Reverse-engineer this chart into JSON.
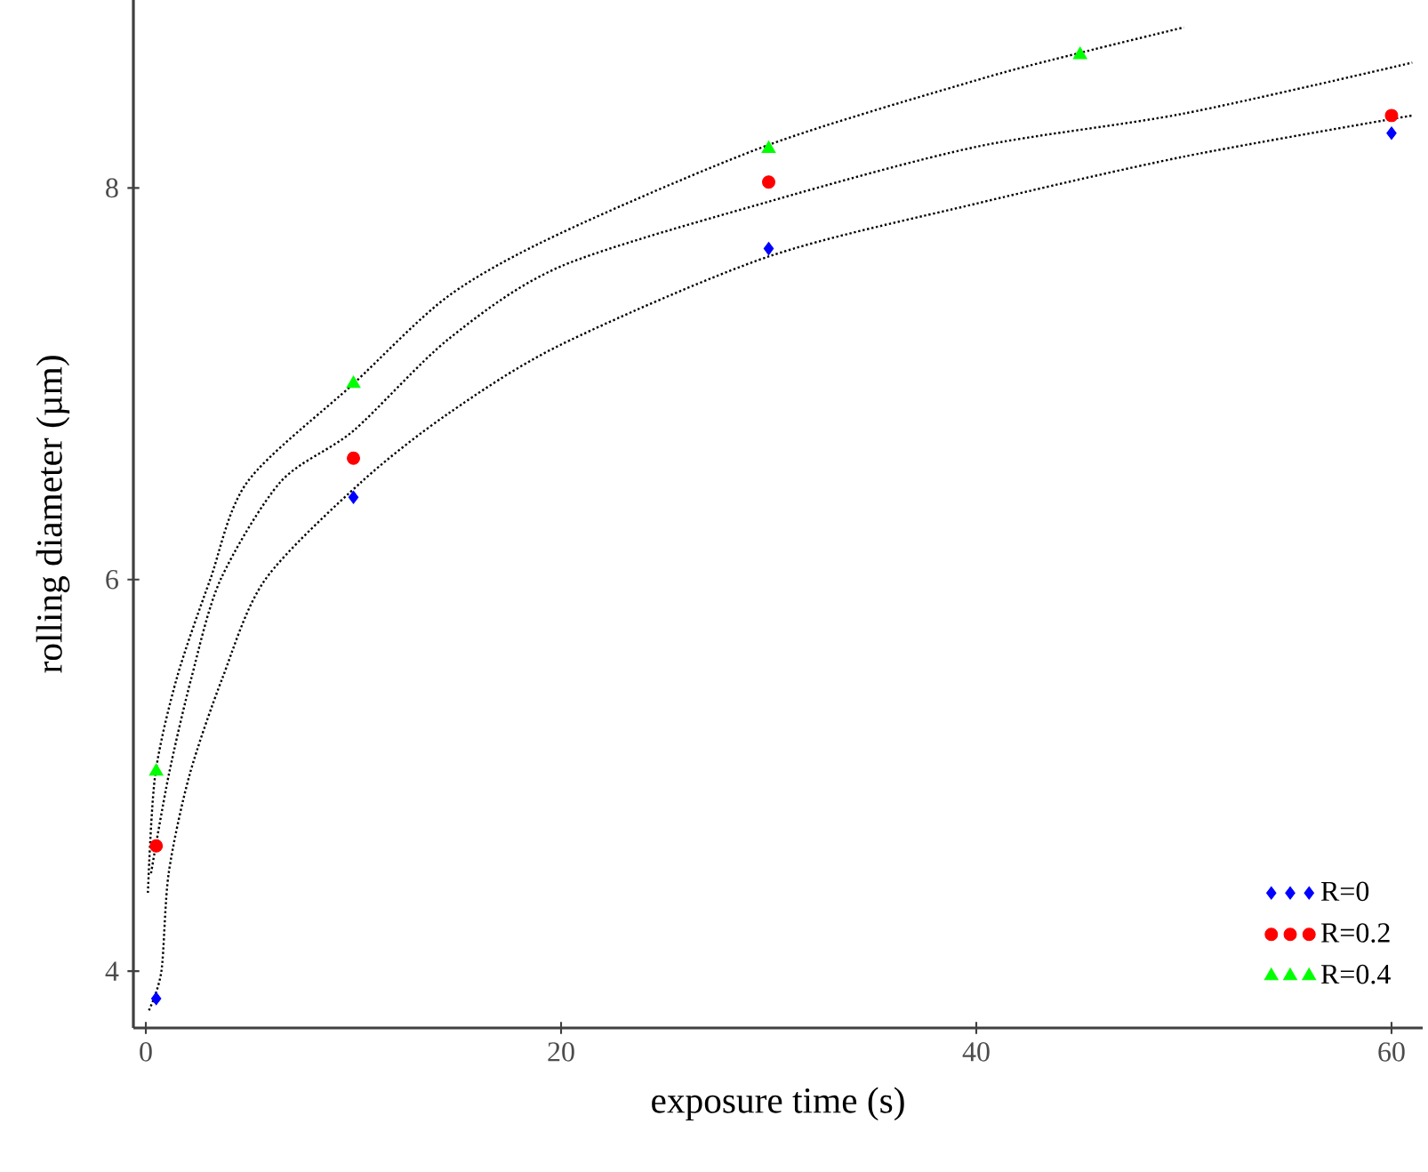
{
  "chart_data": {
    "type": "scatter",
    "xlabel": "exposure time (s)",
    "ylabel": "rolling diameter (µm)",
    "xlim": [
      -0.6,
      61.5
    ],
    "ylim": [
      3.71,
      8.96
    ],
    "xticks": [
      0,
      20,
      40,
      60
    ],
    "yticks": [
      4,
      6,
      8
    ],
    "grid": false,
    "legend": "bottom right",
    "series": [
      {
        "name": "R=0",
        "color": "#0000ff",
        "marker": "diamond",
        "x": [
          0.5,
          10,
          30,
          60
        ],
        "values": [
          3.86,
          6.42,
          7.69,
          8.28
        ]
      },
      {
        "name": "R=0.2",
        "color": "#ff0000",
        "marker": "circle",
        "x": [
          0.5,
          10,
          30,
          60
        ],
        "values": [
          4.64,
          6.62,
          8.03,
          8.37
        ]
      },
      {
        "name": "R=0.4",
        "color": "#00ff00",
        "marker": "triangle",
        "x": [
          0.5,
          10,
          30,
          45
        ],
        "values": [
          5.02,
          7.0,
          8.2,
          8.68
        ]
      },
      {
        "type": "line",
        "color": "#000000",
        "line_style": "dotted",
        "marker": "none",
        "x": [
          0.15,
          0.75,
          1.1,
          2.1,
          3.7,
          5.75,
          10.4,
          14.6,
          20,
          30,
          40,
          50,
          61
        ],
        "values": [
          3.8,
          4.0,
          4.5,
          5.0,
          5.5,
          6.0,
          6.5,
          6.85,
          7.2,
          7.65,
          7.92,
          8.16,
          8.37
        ]
      },
      {
        "type": "line",
        "color": "#000000",
        "line_style": "dotted",
        "marker": "none",
        "x": [
          0.25,
          1.1,
          2.2,
          3.6,
          6.5,
          10,
          14.6,
          20,
          30,
          40,
          50,
          61
        ],
        "values": [
          4.5,
          5.0,
          5.5,
          6.0,
          6.5,
          6.76,
          7.23,
          7.6,
          7.93,
          8.21,
          8.38,
          8.64
        ]
      },
      {
        "type": "line",
        "color": "#000000",
        "line_style": "dotted",
        "marker": "none",
        "x": [
          0.1,
          0.45,
          1.5,
          3.1,
          4.9,
          10,
          14.6,
          20,
          30,
          40,
          45,
          50
        ],
        "values": [
          4.4,
          5.0,
          5.5,
          6.0,
          6.5,
          7.0,
          7.45,
          7.77,
          8.22,
          8.55,
          8.69,
          8.82
        ]
      }
    ]
  }
}
